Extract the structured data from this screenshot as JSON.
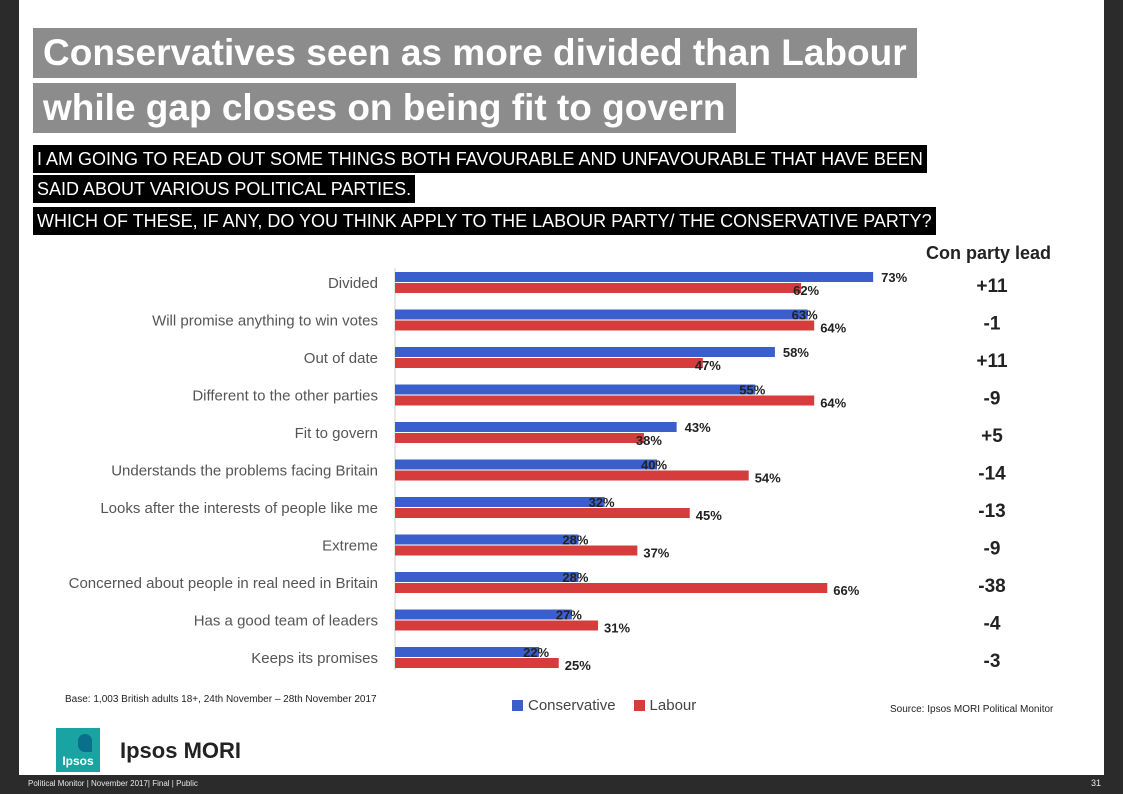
{
  "title": {
    "line1": "Conservatives seen as more divided than Labour",
    "line2": "while gap closes on being fit to govern"
  },
  "question": {
    "line1": "I AM GOING TO READ OUT SOME THINGS BOTH FAVOURABLE AND UNFAVOURABLE THAT HAVE BEEN",
    "line2": "SAID ABOUT VARIOUS POLITICAL PARTIES.",
    "line3": "WHICH OF THESE, IF ANY, DO YOU THINK APPLY TO THE LABOUR PARTY/ THE CONSERVATIVE PARTY?"
  },
  "lead_header": "Con party lead",
  "base_note": "Base: 1,003 British adults 18+, 24th November – 28th November 2017",
  "source_note": "Source: Ipsos MORI Political Monitor",
  "brand": "Ipsos MORI",
  "logo_text": "Ipsos",
  "footer": "Political Monitor | November 2017| Final | Public",
  "page_number": "31",
  "colors": {
    "conservative": "#3a5fcd",
    "labour": "#d63c3c",
    "title_bg": "#8c8c8c",
    "question_bg": "#000000"
  },
  "chart_data": {
    "type": "bar",
    "orientation": "horizontal",
    "categories": [
      "Divided",
      "Will promise anything to win votes",
      "Out of date",
      "Different to the other parties",
      "Fit to govern",
      "Understands the problems facing Britain",
      "Looks after the interests of people like me",
      "Extreme",
      "Concerned about people in real need in Britain",
      "Has a good team of leaders",
      "Keeps its promises"
    ],
    "series": [
      {
        "name": "Conservative",
        "values": [
          73,
          63,
          58,
          55,
          43,
          40,
          32,
          28,
          28,
          27,
          22
        ]
      },
      {
        "name": "Labour",
        "values": [
          62,
          64,
          47,
          64,
          38,
          54,
          45,
          37,
          66,
          31,
          25
        ]
      }
    ],
    "value_suffix": "%",
    "lead": [
      "+11",
      "-1",
      "+11",
      "-9",
      "+5",
      "-14",
      "-13",
      "-9",
      "-38",
      "-4",
      "-3"
    ],
    "xlim": [
      0,
      100
    ],
    "legend": [
      "Conservative",
      "Labour"
    ],
    "legend_position": "bottom"
  }
}
